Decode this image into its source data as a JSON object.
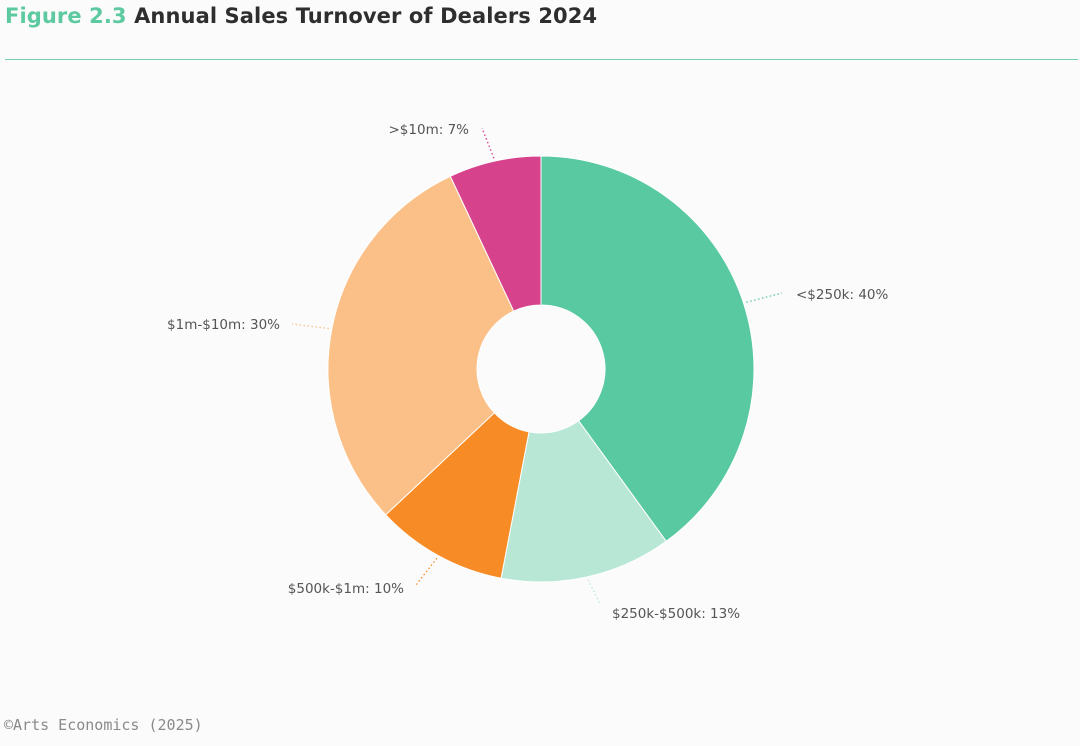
{
  "header": {
    "figure_number": "Figure 2.3",
    "title": "Annual Sales Turnover of Dealers 2024"
  },
  "source": "©Arts Economics (2025)",
  "chart_data": {
    "type": "pie",
    "style": "donut",
    "slices": [
      {
        "label": "<$250k",
        "value": 40,
        "display": "<$250k: 40%",
        "color": "#58c9a1"
      },
      {
        "label": "$250k-$500k",
        "value": 13,
        "display": "$250k-$500k: 13%",
        "color": "#b8e7d6"
      },
      {
        "label": "$500k-$1m",
        "value": 10,
        "display": "$500k-$1m: 10%",
        "color": "#f78b25"
      },
      {
        "label": "$1m-$10m",
        "value": 30,
        "display": "$1m-$10m: 30%",
        "color": "#fbc087"
      },
      {
        "label": ">$10m",
        "value": 7,
        "display": ">$10m: 7%",
        "color": "#d6428b"
      }
    ],
    "start_angle": "12 o'clock",
    "direction": "clockwise",
    "legend": "none"
  }
}
